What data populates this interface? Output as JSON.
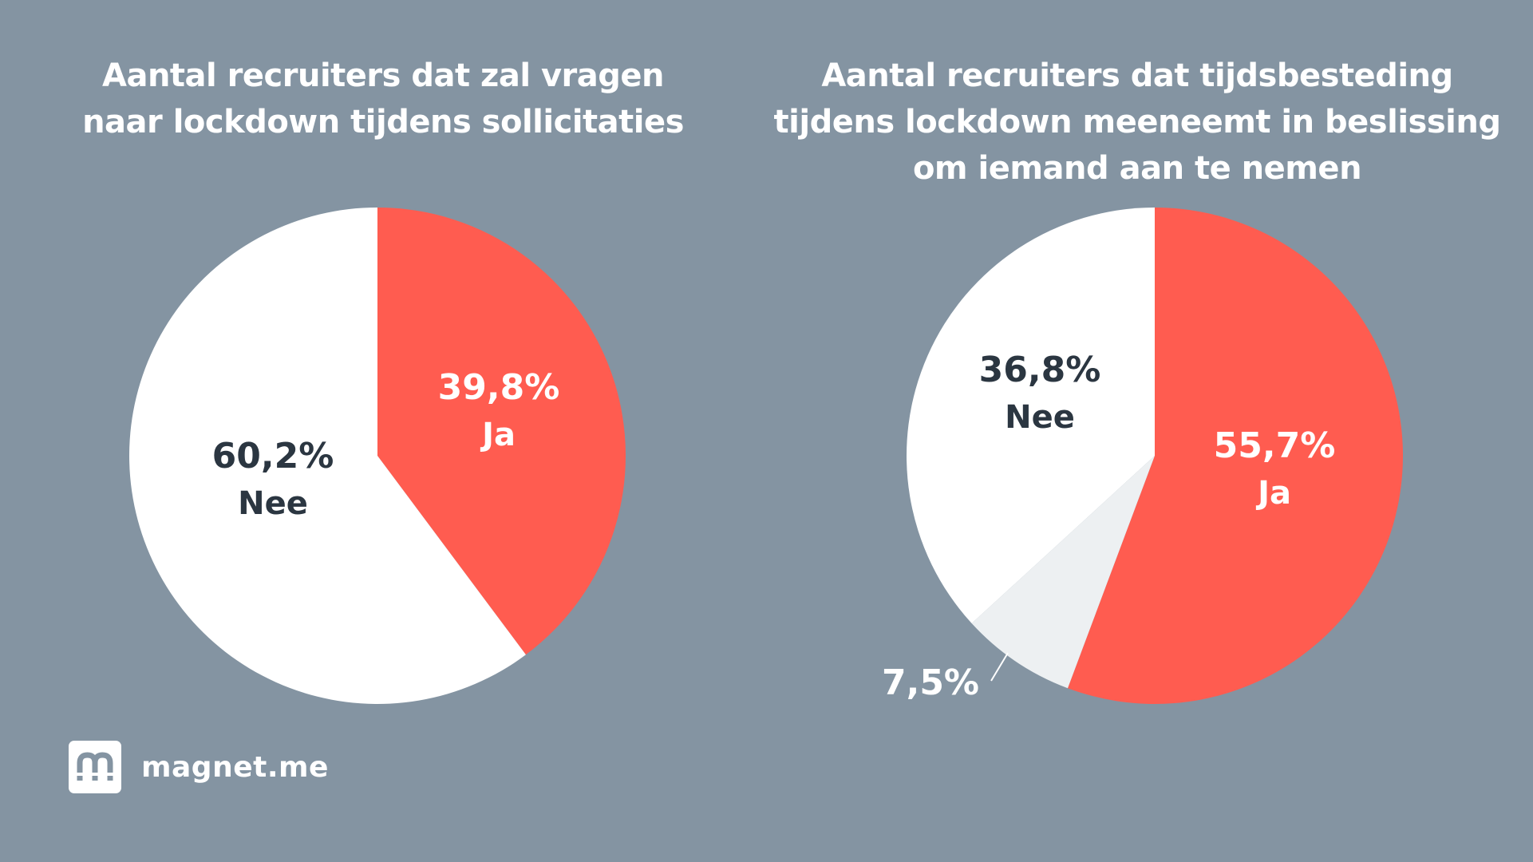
{
  "chart_data": [
    {
      "type": "pie",
      "title": "Aantal recruiters dat zal vragen naar lockdown tijdens sollicitaties",
      "title_lines": [
        "Aantal recruiters dat zal vragen",
        "naar lockdown tijdens sollicitaties"
      ],
      "slices": [
        {
          "label": "Ja",
          "value": 39.8,
          "value_label": "39,8%",
          "color": "#ff5c50",
          "text_color": "#ffffff"
        },
        {
          "label": "Nee",
          "value": 60.2,
          "value_label": "60,2%",
          "color": "#ffffff",
          "text_color": "#2b3641"
        }
      ]
    },
    {
      "type": "pie",
      "title": "Aantal recruiters dat tijdsbesteding tijdens lockdown meeneemt in beslissing om iemand aan te nemen",
      "title_lines": [
        "Aantal recruiters dat tijdsbesteding",
        "tijdens lockdown meeneemt in beslissing",
        "om iemand aan te nemen"
      ],
      "slices": [
        {
          "label": "Ja",
          "value": 55.7,
          "value_label": "55,7%",
          "color": "#ff5c50",
          "text_color": "#ffffff"
        },
        {
          "label": "",
          "value": 7.5,
          "value_label": "7,5%",
          "color": "#edf0f2",
          "text_color": "#ffffff"
        },
        {
          "label": "Nee",
          "value": 36.8,
          "value_label": "36,8%",
          "color": "#ffffff",
          "text_color": "#2b3641"
        }
      ]
    }
  ],
  "branding": {
    "logo_text": "magnet.me"
  },
  "colors": {
    "background": "#8494a2",
    "accent": "#ff5c50",
    "dark_text": "#2b3641"
  }
}
